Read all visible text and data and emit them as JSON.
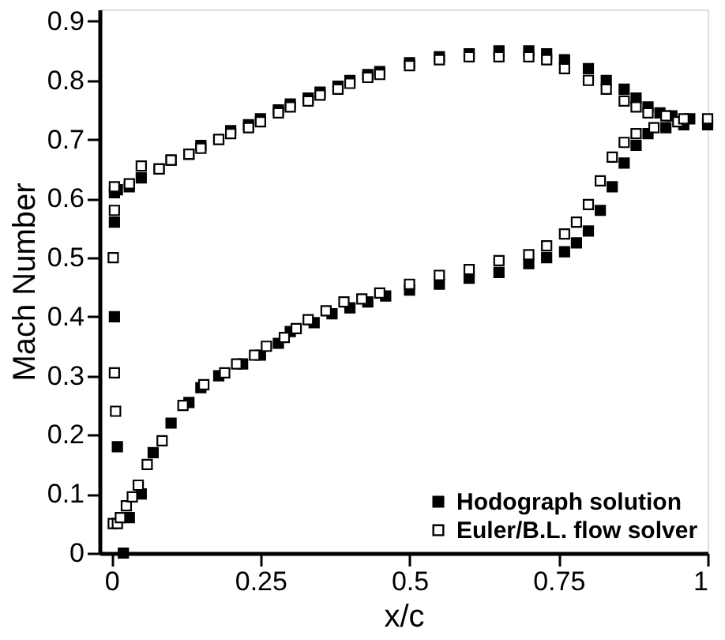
{
  "chart_data": {
    "type": "scatter",
    "xlabel": "x/c",
    "ylabel": "Mach Number",
    "xlim": [
      -0.02,
      1
    ],
    "ylim": [
      0,
      0.92
    ],
    "xticks": [
      0,
      0.25,
      0.5,
      0.75,
      1
    ],
    "yticks": [
      0,
      0.1,
      0.2,
      0.3,
      0.4,
      0.5,
      0.6,
      0.7,
      0.8,
      0.9
    ],
    "grid": false,
    "legend": "bottom right",
    "marker": "square",
    "series": [
      {
        "name": "Hodograph solution",
        "color": "#000000",
        "x": [
          0.005,
          0.005,
          0.01,
          0.02,
          0.03,
          0.05,
          0.07,
          0.1,
          0.13,
          0.15,
          0.18,
          0.22,
          0.25,
          0.28,
          0.3,
          0.34,
          0.37,
          0.4,
          0.43,
          0.46,
          0.5,
          0.55,
          0.6,
          0.65,
          0.7,
          0.73,
          0.76,
          0.78,
          0.8,
          0.82,
          0.84,
          0.86,
          0.88,
          0.9,
          0.93,
          0.96,
          1.0,
          0.005,
          0.01,
          0.03,
          0.05,
          0.08,
          0.1,
          0.13,
          0.15,
          0.18,
          0.2,
          0.23,
          0.25,
          0.28,
          0.3,
          0.33,
          0.35,
          0.38,
          0.4,
          0.43,
          0.45,
          0.5,
          0.55,
          0.6,
          0.65,
          0.7,
          0.73,
          0.76,
          0.8,
          0.83,
          0.86,
          0.88,
          0.9,
          0.92,
          0.94,
          0.97
        ],
        "values": [
          0.56,
          0.4,
          0.18,
          0.0,
          0.06,
          0.1,
          0.17,
          0.22,
          0.255,
          0.28,
          0.3,
          0.32,
          0.335,
          0.355,
          0.375,
          0.39,
          0.405,
          0.415,
          0.425,
          0.435,
          0.445,
          0.455,
          0.465,
          0.475,
          0.49,
          0.5,
          0.51,
          0.525,
          0.545,
          0.58,
          0.62,
          0.66,
          0.69,
          0.71,
          0.72,
          0.725,
          0.725,
          0.61,
          0.615,
          0.62,
          0.635,
          0.65,
          0.665,
          0.675,
          0.69,
          0.7,
          0.715,
          0.725,
          0.735,
          0.75,
          0.76,
          0.77,
          0.78,
          0.79,
          0.8,
          0.81,
          0.815,
          0.83,
          0.84,
          0.845,
          0.85,
          0.85,
          0.845,
          0.835,
          0.82,
          0.8,
          0.785,
          0.77,
          0.755,
          0.745,
          0.74,
          0.735
        ]
      },
      {
        "name": "Euler/B.L. flow solver",
        "color": "#000000",
        "x": [
          0.005,
          0.003,
          0.005,
          0.007,
          0.003,
          0.01,
          0.015,
          0.025,
          0.035,
          0.045,
          0.06,
          0.085,
          0.12,
          0.155,
          0.19,
          0.21,
          0.24,
          0.26,
          0.29,
          0.31,
          0.33,
          0.36,
          0.39,
          0.42,
          0.45,
          0.5,
          0.55,
          0.6,
          0.65,
          0.7,
          0.73,
          0.76,
          0.78,
          0.8,
          0.82,
          0.84,
          0.86,
          0.88,
          0.91,
          0.95,
          1.0,
          0.005,
          0.03,
          0.05,
          0.08,
          0.1,
          0.13,
          0.15,
          0.18,
          0.2,
          0.23,
          0.25,
          0.28,
          0.3,
          0.33,
          0.35,
          0.38,
          0.4,
          0.43,
          0.45,
          0.5,
          0.55,
          0.6,
          0.65,
          0.7,
          0.73,
          0.76,
          0.8,
          0.83,
          0.86,
          0.88,
          0.9,
          0.93,
          0.96
        ],
        "values": [
          0.58,
          0.5,
          0.305,
          0.24,
          0.05,
          0.05,
          0.06,
          0.08,
          0.095,
          0.115,
          0.15,
          0.19,
          0.25,
          0.285,
          0.305,
          0.32,
          0.335,
          0.35,
          0.365,
          0.38,
          0.395,
          0.41,
          0.425,
          0.43,
          0.44,
          0.455,
          0.47,
          0.48,
          0.495,
          0.505,
          0.52,
          0.54,
          0.56,
          0.59,
          0.63,
          0.67,
          0.695,
          0.71,
          0.72,
          0.73,
          0.735,
          0.62,
          0.625,
          0.655,
          0.65,
          0.665,
          0.675,
          0.685,
          0.7,
          0.71,
          0.72,
          0.73,
          0.745,
          0.755,
          0.765,
          0.775,
          0.785,
          0.795,
          0.805,
          0.81,
          0.825,
          0.835,
          0.84,
          0.84,
          0.84,
          0.835,
          0.82,
          0.8,
          0.785,
          0.765,
          0.755,
          0.745,
          0.74,
          0.735
        ]
      }
    ]
  }
}
